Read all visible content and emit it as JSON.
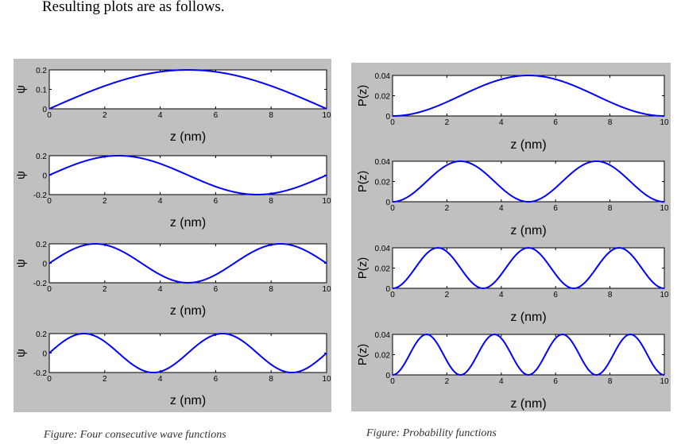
{
  "intro_text": "Resulting plots are as follows.",
  "colors": {
    "panel_bg": "#c0c0c0",
    "plot_bg": "#ffffff",
    "curve": "#0000ff"
  },
  "captions": {
    "left": "Figure: Four consecutive wave functions",
    "right": "Figure: Probability functions"
  },
  "chart_data": [
    {
      "group": "wave",
      "type": "line",
      "function": "psi",
      "n": 1,
      "xlabel": "z (nm)",
      "ylabel": "ψ",
      "xlim": [
        0,
        10
      ],
      "ylim": [
        0,
        0.2
      ],
      "yticks": [
        "0",
        "0.1",
        "0.2"
      ],
      "xticks": [
        "0",
        "2",
        "4",
        "6",
        "8",
        "10"
      ],
      "grid": false
    },
    {
      "group": "wave",
      "type": "line",
      "function": "psi",
      "n": 2,
      "xlabel": "z (nm)",
      "ylabel": "ψ",
      "xlim": [
        0,
        10
      ],
      "ylim": [
        -0.2,
        0.2
      ],
      "yticks": [
        "-0.2",
        "0",
        "0.2"
      ],
      "xticks": [
        "0",
        "2",
        "4",
        "6",
        "8",
        "10"
      ],
      "grid": false
    },
    {
      "group": "wave",
      "type": "line",
      "function": "psi",
      "n": 3,
      "xlabel": "z (nm)",
      "ylabel": "ψ",
      "xlim": [
        0,
        10
      ],
      "ylim": [
        -0.2,
        0.2
      ],
      "yticks": [
        "-0.2",
        "0",
        "0.2"
      ],
      "xticks": [
        "0",
        "2",
        "4",
        "6",
        "8",
        "10"
      ],
      "grid": false
    },
    {
      "group": "wave",
      "type": "line",
      "function": "psi",
      "n": 4,
      "xlabel": "z (nm)",
      "ylabel": "ψ",
      "xlim": [
        0,
        10
      ],
      "ylim": [
        -0.2,
        0.2
      ],
      "yticks": [
        "-0.2",
        "0",
        "0.2"
      ],
      "xticks": [
        "0",
        "2",
        "4",
        "6",
        "8",
        "10"
      ],
      "grid": false
    },
    {
      "group": "prob",
      "type": "line",
      "function": "prob",
      "n": 1,
      "xlabel": "z (nm)",
      "ylabel": "P(z)",
      "xlim": [
        0,
        10
      ],
      "ylim": [
        0,
        0.04
      ],
      "yticks": [
        "0",
        "0.02",
        "0.04"
      ],
      "xticks": [
        "0",
        "2",
        "4",
        "6",
        "8",
        "10"
      ],
      "grid": false
    },
    {
      "group": "prob",
      "type": "line",
      "function": "prob",
      "n": 2,
      "xlabel": "z (nm)",
      "ylabel": "P(z)",
      "xlim": [
        0,
        10
      ],
      "ylim": [
        0,
        0.04
      ],
      "yticks": [
        "0",
        "0.02",
        "0.04"
      ],
      "xticks": [
        "0",
        "2",
        "4",
        "6",
        "8",
        "10"
      ],
      "grid": false
    },
    {
      "group": "prob",
      "type": "line",
      "function": "prob",
      "n": 3,
      "xlabel": "z (nm)",
      "ylabel": "P(z)",
      "xlim": [
        0,
        10
      ],
      "ylim": [
        0,
        0.04
      ],
      "yticks": [
        "0",
        "0.02",
        "0.04"
      ],
      "xticks": [
        "0",
        "2",
        "4",
        "6",
        "8",
        "10"
      ],
      "grid": false
    },
    {
      "group": "prob",
      "type": "line",
      "function": "prob",
      "n": 4,
      "xlabel": "z (nm)",
      "ylabel": "P(z)",
      "xlim": [
        0,
        10
      ],
      "ylim": [
        0,
        0.04
      ],
      "yticks": [
        "0",
        "0.02",
        "0.04"
      ],
      "xticks": [
        "0",
        "2",
        "4",
        "6",
        "8",
        "10"
      ],
      "grid": false
    }
  ]
}
